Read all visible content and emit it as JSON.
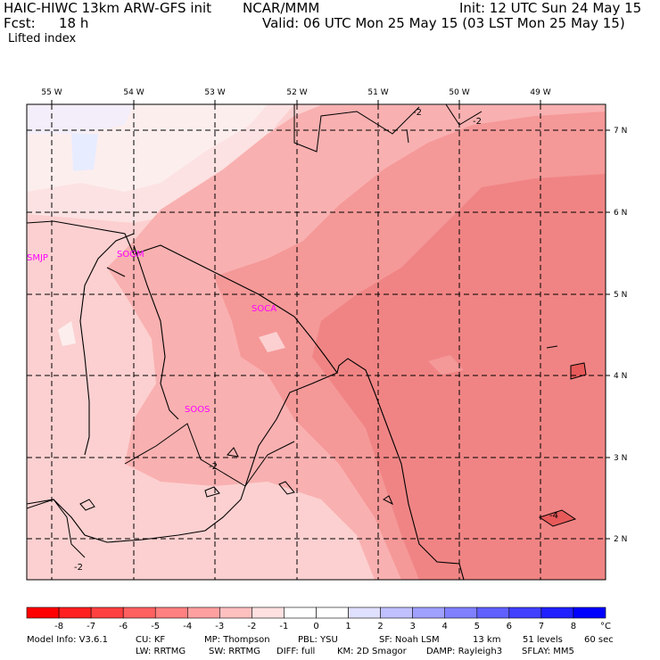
{
  "header": {
    "model": "HAIC-HIWC 13km ARW-GFS init",
    "org": "NCAR/MMM",
    "init": "Init: 12 UTC Sun 24 May 15",
    "fcst_label": "Fcst:",
    "fcst_value": "18 h",
    "valid": "Valid: 06 UTC Mon 25 May 15 (03 LST Mon 25 May 15)",
    "field": "Lifted index"
  },
  "map": {
    "lon_labels": [
      "55 W",
      "54 W",
      "53 W",
      "52 W",
      "51 W",
      "50 W",
      "49 W"
    ],
    "lat_labels": [
      "7 N",
      "6 N",
      "5 N",
      "4 N",
      "3 N",
      "2 N"
    ],
    "stations": [
      "SMJP",
      "SOGM",
      "SOCA",
      "SOOS"
    ],
    "contour_labels": [
      "-2",
      "-2",
      "-2",
      "-2",
      "-4"
    ],
    "fill_colors": {
      "very_light_blue": "#e8ecff",
      "near_zero": "#fdeeee",
      "m1_to_m2": "#fcd0d0",
      "m2_to_m3": "#f9b0b0",
      "m3_to_m4": "#f59898",
      "m4_to_m5": "#f08484",
      "m5_to_m6": "#e85a5a"
    }
  },
  "colorbar": {
    "labels": [
      "-8",
      "-7",
      "-6",
      "-5",
      "-4",
      "-3",
      "-2",
      "-1",
      "0",
      "1",
      "2",
      "3",
      "4",
      "5",
      "6",
      "7",
      "8"
    ],
    "unit": "°C",
    "colors": [
      "#ff0000",
      "#ff2020",
      "#ff4040",
      "#ff6060",
      "#ff8080",
      "#ffa0a0",
      "#ffc0c0",
      "#ffe0e0",
      "#ffffff",
      "#e0e0ff",
      "#c0c0ff",
      "#a0a0ff",
      "#8080ff",
      "#6060ff",
      "#4040ff",
      "#2020ff",
      "#0000ff"
    ]
  },
  "footer": {
    "line1_label": "Model Info: V3.6.1",
    "cu": "CU: KF",
    "mp": "MP: Thompson",
    "pbl": "PBL: YSU",
    "sf": "SF: Noah LSM",
    "res": "13 km",
    "levels": "51 levels",
    "dt": "60 sec",
    "lw": "LW: RRTMG",
    "sw": "SW: RRTMG",
    "diff": "DIFF: full",
    "km": "KM: 2D Smagor",
    "damp": "DAMP: Rayleigh3",
    "sflay": "SFLAY: MM5"
  }
}
